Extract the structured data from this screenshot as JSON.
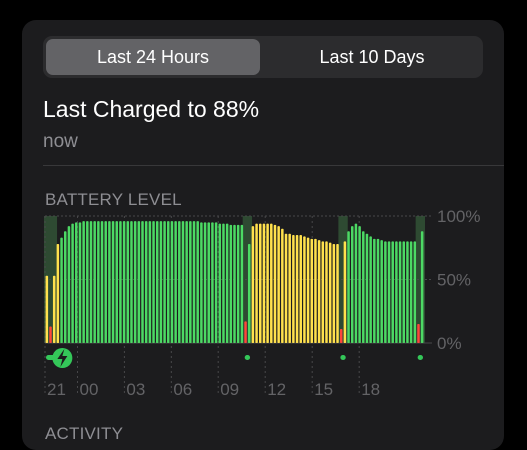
{
  "tabs": [
    {
      "label": "Last 24 Hours",
      "selected": true
    },
    {
      "label": "Last 10 Days",
      "selected": false
    }
  ],
  "status": {
    "title": "Last Charged to 88%",
    "subtitle": "now"
  },
  "battery_section": {
    "label": "BATTERY LEVEL"
  },
  "activity_section": {
    "label": "ACTIVITY"
  },
  "colors": {
    "green": "#4cd964",
    "yellow": "#ffe14d",
    "red": "#ff453a",
    "charging": "#2e4a32",
    "charge_icon": "#34c759",
    "grid": "#48484a",
    "axis_text": "#636366"
  },
  "chart_data": {
    "type": "bar",
    "title": "BATTERY LEVEL",
    "xlabel": "",
    "ylabel": "",
    "ylim": [
      0,
      100
    ],
    "y_ticks": [
      "100%",
      "50%",
      "0%"
    ],
    "x_tick_labels": [
      "21",
      "00",
      "03",
      "06",
      "09",
      "12",
      "15",
      "18"
    ],
    "grid": true,
    "legend": "none",
    "low_power_mode_color": "yellow",
    "charging_icon": "bolt-icon",
    "values": [
      53,
      13,
      53,
      78,
      83,
      88,
      92,
      94,
      95,
      95,
      96,
      96,
      96,
      96,
      96,
      96,
      96,
      96,
      96,
      96,
      96,
      96,
      96,
      96,
      96,
      96,
      96,
      96,
      96,
      96,
      96,
      96,
      96,
      96,
      96,
      96,
      96,
      96,
      96,
      96,
      96,
      96,
      95,
      95,
      95,
      95,
      95,
      94,
      94,
      94,
      93,
      93,
      93,
      93,
      17,
      78,
      92,
      94,
      94,
      94,
      94,
      94,
      93,
      92,
      90,
      86,
      86,
      85,
      85,
      85,
      84,
      83,
      82,
      82,
      81,
      80,
      80,
      79,
      78,
      78,
      11,
      80,
      88,
      92,
      94,
      92,
      88,
      86,
      84,
      82,
      82,
      81,
      80,
      80,
      80,
      80,
      80,
      80,
      80,
      80,
      80,
      15,
      88
    ],
    "colors": [
      "yellow",
      "red",
      "yellow",
      "yellow",
      "green",
      "green",
      "green",
      "green",
      "green",
      "green",
      "green",
      "green",
      "green",
      "green",
      "green",
      "green",
      "green",
      "green",
      "green",
      "green",
      "green",
      "green",
      "green",
      "green",
      "green",
      "green",
      "green",
      "green",
      "green",
      "green",
      "green",
      "green",
      "green",
      "green",
      "green",
      "green",
      "green",
      "green",
      "green",
      "green",
      "green",
      "green",
      "green",
      "green",
      "green",
      "green",
      "green",
      "green",
      "green",
      "green",
      "green",
      "green",
      "green",
      "green",
      "red",
      "green",
      "yellow",
      "yellow",
      "yellow",
      "yellow",
      "yellow",
      "yellow",
      "yellow",
      "yellow",
      "yellow",
      "yellow",
      "yellow",
      "yellow",
      "yellow",
      "yellow",
      "yellow",
      "yellow",
      "yellow",
      "yellow",
      "yellow",
      "yellow",
      "yellow",
      "yellow",
      "yellow",
      "yellow",
      "red",
      "yellow",
      "green",
      "green",
      "green",
      "green",
      "green",
      "green",
      "green",
      "green",
      "green",
      "green",
      "green",
      "green",
      "green",
      "green",
      "green",
      "green",
      "green",
      "green",
      "green",
      "red",
      "green"
    ],
    "charging_ranges": [
      [
        0,
        2
      ],
      [
        54,
        55
      ],
      [
        80,
        81
      ],
      [
        101,
        102
      ]
    ]
  }
}
